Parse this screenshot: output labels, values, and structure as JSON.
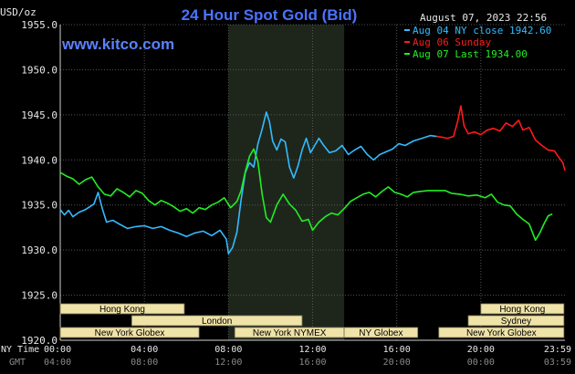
{
  "chart_data": {
    "type": "line",
    "title": "24 Hour Spot Gold (Bid)",
    "site": "www.kitco.com",
    "unit_label": "USD/oz",
    "datetime": "August 07, 2023 22:56",
    "ylim": [
      1920.0,
      1955.0
    ],
    "yticks": [
      "1920.0",
      "1925.0",
      "1930.0",
      "1935.0",
      "1940.0",
      "1945.0",
      "1950.0",
      "1955.0"
    ],
    "xticks_ny": [
      "00:00",
      "04:00",
      "08:00",
      "12:00",
      "16:00",
      "20:00",
      "23:59"
    ],
    "xticks_gmt": [
      "04:00",
      "08:00",
      "12:00",
      "16:00",
      "20:00",
      "00:00",
      "03:59"
    ],
    "row_label_ny": "NY Time",
    "row_label_gmt": "GMT",
    "legend_position": "top-right",
    "colors": {
      "background": "#000000",
      "plot_bg": "#000000",
      "shade": "#1e261c",
      "grid": "#555555",
      "session": "#f0e3a8"
    },
    "series": [
      {
        "name": "Aug 04 NY close 1942.60",
        "color": "#33bbff",
        "points": [
          [
            0,
            1934.5
          ],
          [
            0.2,
            1933.9
          ],
          [
            0.4,
            1934.4
          ],
          [
            0.6,
            1933.7
          ],
          [
            0.9,
            1934.2
          ],
          [
            1.2,
            1934.5
          ],
          [
            1.6,
            1935.1
          ],
          [
            1.8,
            1936.4
          ],
          [
            2.0,
            1934.6
          ],
          [
            2.2,
            1933.1
          ],
          [
            2.5,
            1933.3
          ],
          [
            2.8,
            1932.9
          ],
          [
            3.2,
            1932.4
          ],
          [
            3.6,
            1932.6
          ],
          [
            4.0,
            1932.7
          ],
          [
            4.4,
            1932.4
          ],
          [
            4.8,
            1932.6
          ],
          [
            5.2,
            1932.2
          ],
          [
            5.6,
            1931.9
          ],
          [
            6.0,
            1931.5
          ],
          [
            6.4,
            1931.9
          ],
          [
            6.8,
            1932.1
          ],
          [
            7.2,
            1931.6
          ],
          [
            7.6,
            1932.2
          ],
          [
            7.9,
            1931.2
          ],
          [
            8.0,
            1929.6
          ],
          [
            8.2,
            1930.3
          ],
          [
            8.4,
            1932.0
          ],
          [
            8.6,
            1935.6
          ],
          [
            8.8,
            1938.6
          ],
          [
            9.0,
            1939.7
          ],
          [
            9.2,
            1939.2
          ],
          [
            9.4,
            1941.8
          ],
          [
            9.6,
            1943.4
          ],
          [
            9.8,
            1945.3
          ],
          [
            9.95,
            1944.2
          ],
          [
            10.1,
            1942.1
          ],
          [
            10.3,
            1941.1
          ],
          [
            10.5,
            1942.3
          ],
          [
            10.7,
            1942.0
          ],
          [
            10.9,
            1939.2
          ],
          [
            11.1,
            1938.0
          ],
          [
            11.3,
            1939.3
          ],
          [
            11.5,
            1941.1
          ],
          [
            11.7,
            1942.4
          ],
          [
            11.9,
            1940.8
          ],
          [
            12.1,
            1941.6
          ],
          [
            12.3,
            1942.4
          ],
          [
            12.5,
            1941.7
          ],
          [
            12.8,
            1940.8
          ],
          [
            13.1,
            1941.0
          ],
          [
            13.4,
            1941.6
          ],
          [
            13.7,
            1940.6
          ],
          [
            14.0,
            1941.1
          ],
          [
            14.3,
            1941.5
          ],
          [
            14.6,
            1940.6
          ],
          [
            14.9,
            1940.0
          ],
          [
            15.2,
            1940.6
          ],
          [
            15.5,
            1940.9
          ],
          [
            15.8,
            1941.2
          ],
          [
            16.1,
            1941.8
          ],
          [
            16.4,
            1941.6
          ],
          [
            16.8,
            1942.1
          ],
          [
            17.2,
            1942.4
          ],
          [
            17.6,
            1942.7
          ],
          [
            17.9,
            1942.6
          ]
        ]
      },
      {
        "name": "Aug 06 Sunday",
        "color": "#ff1a1a",
        "points": [
          [
            17.9,
            1942.6
          ],
          [
            18.2,
            1942.5
          ],
          [
            18.4,
            1942.4
          ],
          [
            18.7,
            1942.6
          ],
          [
            18.9,
            1944.3
          ],
          [
            19.05,
            1946.0
          ],
          [
            19.2,
            1943.8
          ],
          [
            19.4,
            1942.9
          ],
          [
            19.7,
            1943.1
          ],
          [
            20.0,
            1942.8
          ],
          [
            20.3,
            1943.3
          ],
          [
            20.6,
            1943.5
          ],
          [
            20.9,
            1943.2
          ],
          [
            21.2,
            1944.1
          ],
          [
            21.5,
            1943.7
          ],
          [
            21.8,
            1944.4
          ],
          [
            22.0,
            1943.3
          ],
          [
            22.3,
            1943.6
          ],
          [
            22.6,
            1942.2
          ],
          [
            22.9,
            1941.6
          ],
          [
            23.2,
            1941.1
          ],
          [
            23.5,
            1941.0
          ],
          [
            23.7,
            1940.3
          ],
          [
            23.9,
            1939.7
          ],
          [
            24.0,
            1938.8
          ]
        ]
      },
      {
        "name": "Aug 07 Last 1934.00",
        "color": "#22ee22",
        "points": [
          [
            0,
            1938.6
          ],
          [
            0.3,
            1938.2
          ],
          [
            0.6,
            1937.9
          ],
          [
            0.9,
            1937.3
          ],
          [
            1.2,
            1937.8
          ],
          [
            1.5,
            1938.1
          ],
          [
            1.8,
            1937.0
          ],
          [
            2.1,
            1936.2
          ],
          [
            2.4,
            1936.0
          ],
          [
            2.7,
            1936.8
          ],
          [
            3.0,
            1936.4
          ],
          [
            3.3,
            1935.9
          ],
          [
            3.6,
            1936.6
          ],
          [
            3.9,
            1936.3
          ],
          [
            4.2,
            1935.5
          ],
          [
            4.5,
            1935.0
          ],
          [
            4.8,
            1935.5
          ],
          [
            5.1,
            1935.2
          ],
          [
            5.4,
            1934.8
          ],
          [
            5.7,
            1934.3
          ],
          [
            6.0,
            1934.6
          ],
          [
            6.3,
            1934.1
          ],
          [
            6.6,
            1934.7
          ],
          [
            6.9,
            1934.5
          ],
          [
            7.2,
            1935.0
          ],
          [
            7.5,
            1935.3
          ],
          [
            7.8,
            1935.8
          ],
          [
            8.1,
            1934.7
          ],
          [
            8.4,
            1935.4
          ],
          [
            8.6,
            1936.6
          ],
          [
            8.8,
            1938.7
          ],
          [
            9.0,
            1940.4
          ],
          [
            9.2,
            1941.2
          ],
          [
            9.4,
            1939.8
          ],
          [
            9.6,
            1936.2
          ],
          [
            9.8,
            1933.6
          ],
          [
            10.0,
            1933.1
          ],
          [
            10.3,
            1935.0
          ],
          [
            10.6,
            1936.2
          ],
          [
            10.9,
            1935.1
          ],
          [
            11.2,
            1934.4
          ],
          [
            11.5,
            1933.2
          ],
          [
            11.8,
            1933.4
          ],
          [
            12.0,
            1932.2
          ],
          [
            12.3,
            1933.1
          ],
          [
            12.6,
            1933.7
          ],
          [
            12.9,
            1934.1
          ],
          [
            13.2,
            1933.9
          ],
          [
            13.5,
            1934.6
          ],
          [
            13.8,
            1935.4
          ],
          [
            14.1,
            1935.8
          ],
          [
            14.4,
            1936.2
          ],
          [
            14.7,
            1936.4
          ],
          [
            15.0,
            1935.9
          ],
          [
            15.3,
            1936.5
          ],
          [
            15.6,
            1937.0
          ],
          [
            15.9,
            1936.4
          ],
          [
            16.2,
            1936.2
          ],
          [
            16.5,
            1935.9
          ],
          [
            16.8,
            1936.4
          ],
          [
            17.1,
            1936.5
          ],
          [
            17.5,
            1936.6
          ],
          [
            17.9,
            1936.6
          ],
          [
            18.3,
            1936.6
          ],
          [
            18.6,
            1936.3
          ],
          [
            19.0,
            1936.2
          ],
          [
            19.4,
            1936.0
          ],
          [
            19.8,
            1936.1
          ],
          [
            20.2,
            1935.8
          ],
          [
            20.5,
            1936.2
          ],
          [
            20.8,
            1935.3
          ],
          [
            21.1,
            1935.0
          ],
          [
            21.4,
            1934.9
          ],
          [
            21.7,
            1934.0
          ],
          [
            22.0,
            1933.4
          ],
          [
            22.3,
            1932.9
          ],
          [
            22.6,
            1931.1
          ],
          [
            22.8,
            1931.9
          ],
          [
            23.0,
            1932.9
          ],
          [
            23.2,
            1933.8
          ],
          [
            23.4,
            1934.0
          ]
        ]
      }
    ],
    "shaded_region_hours": [
      8.0,
      13.5
    ],
    "sessions": [
      {
        "label": "Hong Kong",
        "start": 0,
        "end": 5.9,
        "row": 0
      },
      {
        "label": "London",
        "start": 3.4,
        "end": 11.5,
        "row": 1
      },
      {
        "label": "New York Globex",
        "start": 0,
        "end": 6.6,
        "row": 2
      },
      {
        "label": "New York NYMEX",
        "start": 8.3,
        "end": 13.5,
        "row": 2
      },
      {
        "label": "NY Globex",
        "start": 13.5,
        "end": 17.0,
        "row": 2
      },
      {
        "label": "Hong Kong",
        "start": 20.0,
        "end": 23.95,
        "row": 0
      },
      {
        "label": "Sydney",
        "start": 19.4,
        "end": 23.95,
        "row": 1
      },
      {
        "label": "New York Globex",
        "start": 18.0,
        "end": 23.95,
        "row": 2
      }
    ],
    "grid": true
  }
}
